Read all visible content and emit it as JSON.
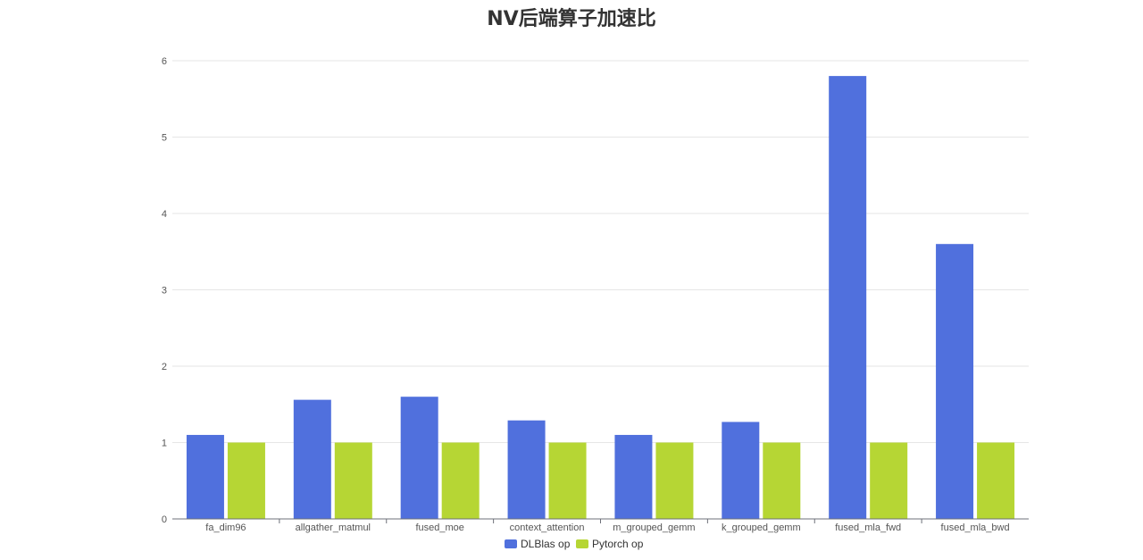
{
  "chart_data": {
    "type": "bar",
    "title": "NV后端算子加速比",
    "xlabel": "",
    "ylabel": "",
    "categories": [
      "fa_dim96",
      "allgather_matmul",
      "fused_moe",
      "context_attention",
      "m_grouped_gemm",
      "k_grouped_gemm",
      "fused_mla_fwd",
      "fused_mla_bwd"
    ],
    "series": [
      {
        "name": "DLBlas op",
        "color": "#5070dd",
        "values": [
          1.1,
          1.56,
          1.6,
          1.29,
          1.1,
          1.27,
          5.8,
          3.6
        ]
      },
      {
        "name": "Pytorch op",
        "color": "#b6d634",
        "values": [
          1,
          1,
          1,
          1,
          1,
          1,
          1,
          1
        ]
      }
    ],
    "ylim": [
      0,
      6
    ],
    "yticks": [
      "0",
      "1",
      "2",
      "3",
      "4",
      "5",
      "6"
    ],
    "grid": true,
    "legend_position": "bottom"
  }
}
